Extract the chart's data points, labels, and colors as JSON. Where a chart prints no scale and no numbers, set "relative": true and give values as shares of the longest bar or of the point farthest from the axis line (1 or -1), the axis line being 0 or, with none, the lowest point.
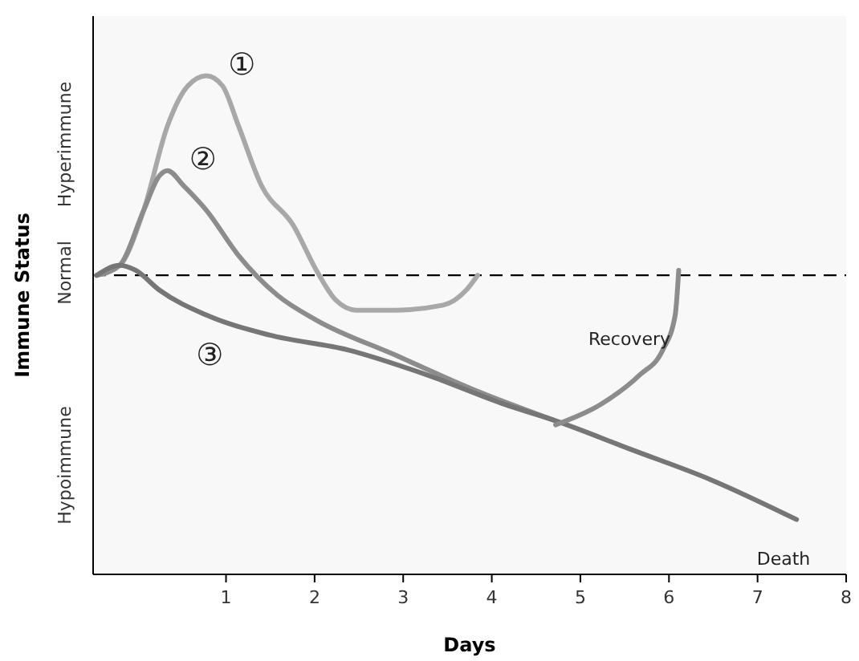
{
  "chart_data": {
    "type": "line",
    "relative": true,
    "xlabel": "Days",
    "ylabel": "Immune Status",
    "xlim": [
      -0.5,
      8
    ],
    "xticks": [
      1,
      2,
      3,
      4,
      5,
      6,
      7,
      8
    ],
    "grid": false,
    "legend": false,
    "marker": "none",
    "line_style": "solid",
    "series": [
      {
        "name": "①",
        "color": "#a8a8a8",
        "x": [
          -0.46,
          -0.2,
          0.07,
          0.34,
          0.57,
          0.78,
          0.96,
          1.14,
          1.4,
          1.76,
          2.02,
          2.24,
          2.47,
          2.91,
          3.45,
          3.71,
          3.84
        ],
        "values": [
          0.6,
          0.62,
          0.73,
          0.9,
          0.98,
          1,
          0.98,
          0.9,
          0.78,
          0.7,
          0.61,
          0.55,
          0.53,
          0.53,
          0.54,
          0.57,
          0.6
        ]
      },
      {
        "name": "②",
        "color": "#8c8c8c",
        "x": [
          -0.46,
          -0.2,
          0.07,
          0.25,
          0.34,
          0.52,
          0.78,
          1.14,
          1.58,
          2.02,
          2.91,
          3.8,
          4.69
        ],
        "values": [
          0.6,
          0.62,
          0.73,
          0.8,
          0.81,
          0.78,
          0.73,
          0.64,
          0.56,
          0.51,
          0.44,
          0.37,
          0.31
        ]
      },
      {
        "name": "③",
        "color": "#767676",
        "x": [
          -0.46,
          -0.2,
          -0.02,
          0.25,
          0.78,
          1.49,
          2.38,
          3.27,
          4.16,
          4.69,
          5.58,
          6.47,
          7.44
        ],
        "values": [
          0.6,
          0.62,
          0.61,
          0.57,
          0.52,
          0.48,
          0.45,
          0.4,
          0.34,
          0.31,
          0.25,
          0.19,
          0.11
        ]
      },
      {
        "color": "#8c8c8c",
        "x": [
          4.72,
          5.22,
          5.67,
          5.93,
          6.07,
          6.11
        ],
        "values": [
          0.3,
          0.34,
          0.4,
          0.45,
          0.52,
          0.61
        ]
      }
    ],
    "ref_lines": [
      {
        "axis": "y",
        "value": 0.6,
        "color": "#000000",
        "line_style": "dashed"
      }
    ],
    "annotations": [
      "Hyperimmune",
      "Normal",
      "Hypoimmune",
      "Recovery",
      "Death"
    ]
  }
}
